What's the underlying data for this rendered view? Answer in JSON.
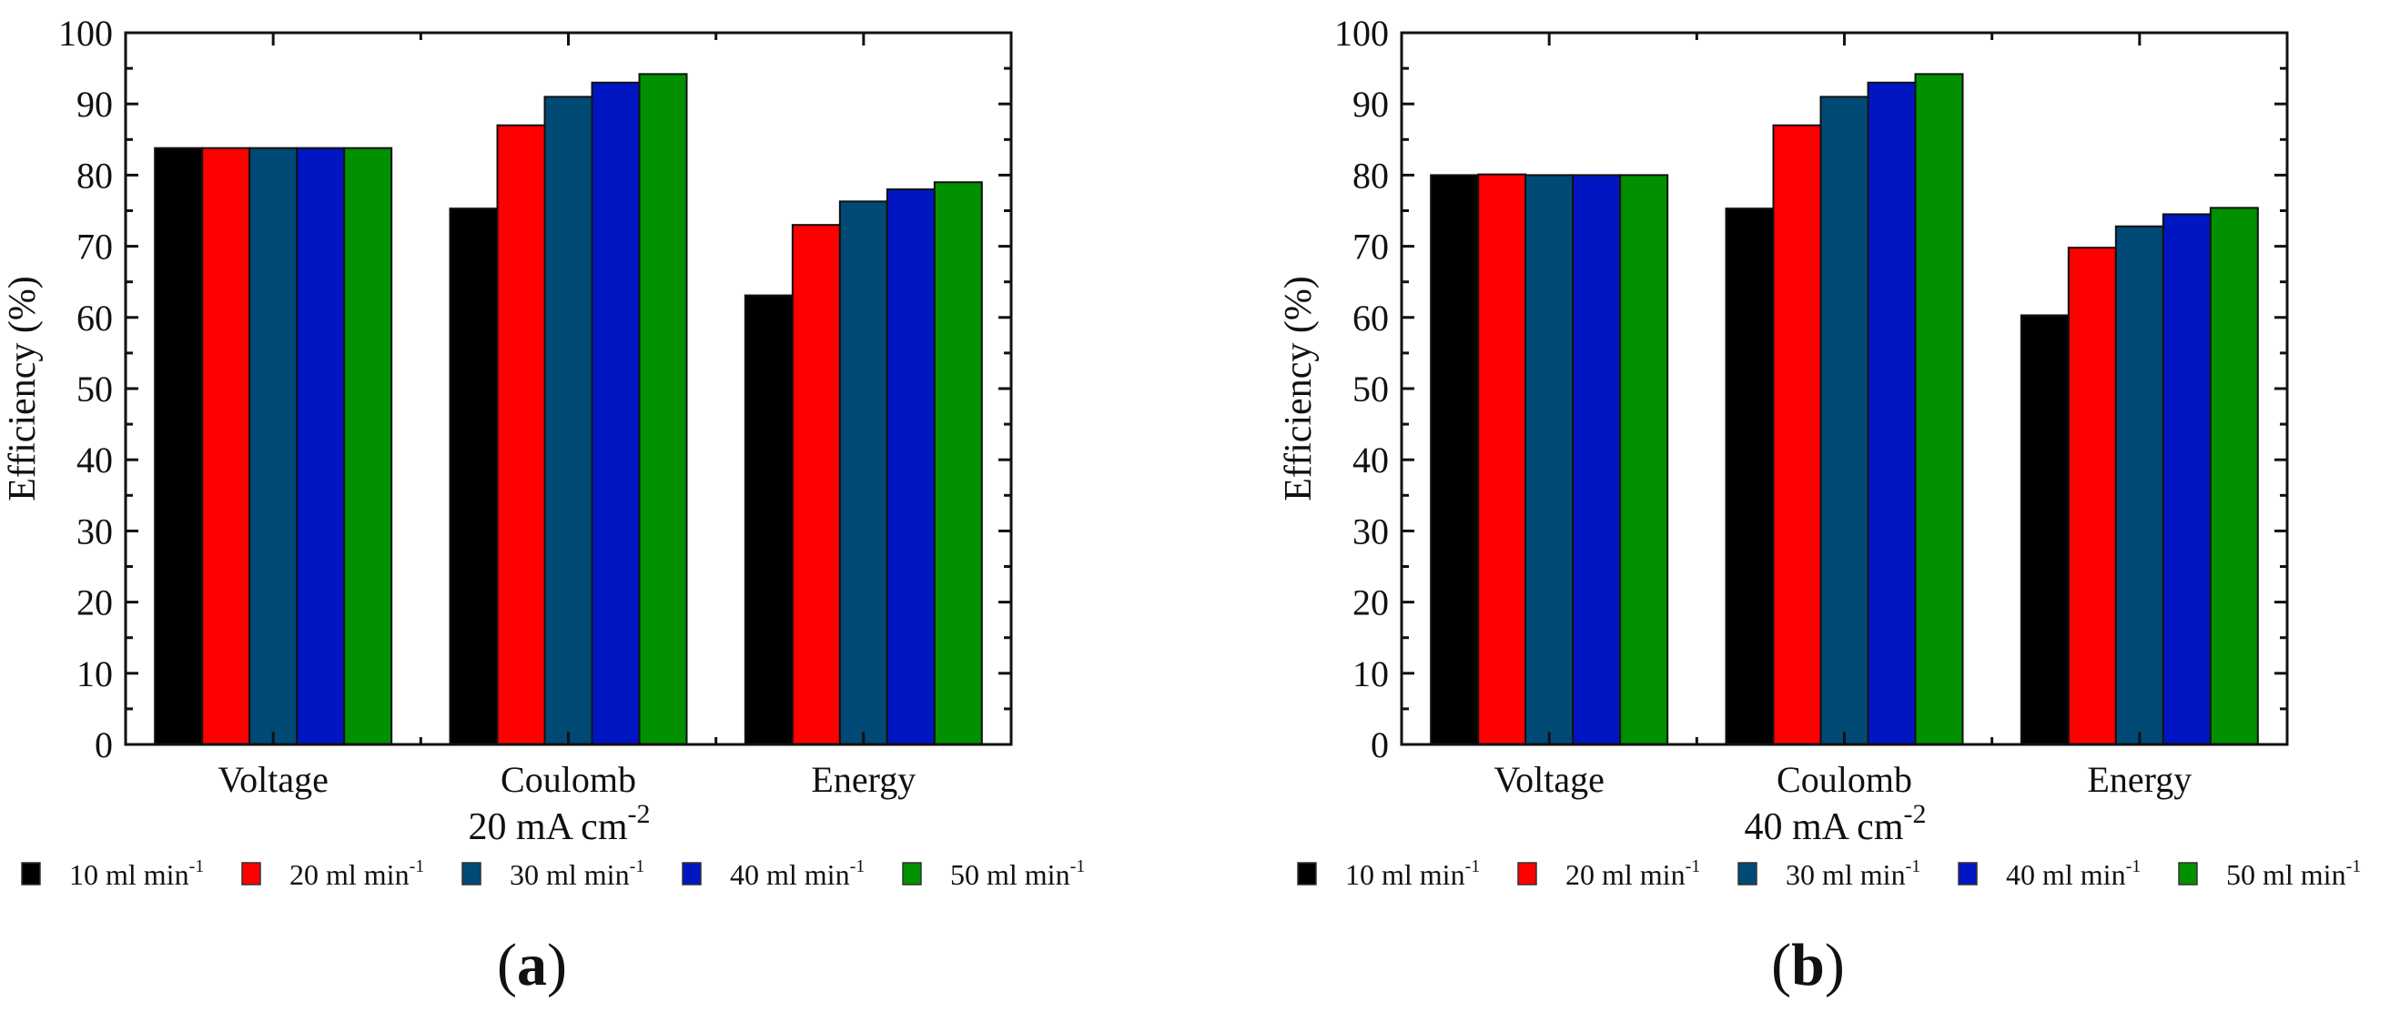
{
  "colors": {
    "10 ml min-1": "#000000",
    "20 ml min-1": "#ff0000",
    "30 ml min-1": "#004a75",
    "40 ml min-1": "#0016c2",
    "50 ml min-1": "#009000"
  },
  "chart_data": [
    {
      "type": "bar",
      "panel_label": "a",
      "title": "",
      "xlabel": "20 mA cm",
      "xlabel_sup": "-2",
      "ylabel": "Efficiency (%)",
      "ylim": [
        0,
        100
      ],
      "yticks": [
        0,
        10,
        20,
        30,
        40,
        50,
        60,
        70,
        80,
        90,
        100
      ],
      "categories": [
        "Voltage",
        "Coulomb",
        "Energy"
      ],
      "legend_position": "bottom",
      "series": [
        {
          "name": "10 ml min",
          "sup": "-1",
          "color": "#000000",
          "values": [
            83.8,
            75.3,
            63.1
          ]
        },
        {
          "name": "20 ml min",
          "sup": "-1",
          "color": "#ff0000",
          "values": [
            83.8,
            87.0,
            73.0
          ]
        },
        {
          "name": "30 ml min",
          "sup": "-1",
          "color": "#004a75",
          "values": [
            83.8,
            91.0,
            76.3
          ]
        },
        {
          "name": "40 ml min",
          "sup": "-1",
          "color": "#0016c2",
          "values": [
            83.8,
            93.0,
            78.0
          ]
        },
        {
          "name": "50 ml min",
          "sup": "-1",
          "color": "#009000",
          "values": [
            83.8,
            94.2,
            79.0
          ]
        }
      ]
    },
    {
      "type": "bar",
      "panel_label": "b",
      "title": "",
      "xlabel": "40 mA cm",
      "xlabel_sup": "-2",
      "ylabel": "Efficiency (%)",
      "ylim": [
        0,
        100
      ],
      "yticks": [
        0,
        10,
        20,
        30,
        40,
        50,
        60,
        70,
        80,
        90,
        100
      ],
      "categories": [
        "Voltage",
        "Coulomb",
        "Energy"
      ],
      "legend_position": "bottom",
      "series": [
        {
          "name": "10 ml min",
          "sup": "-1",
          "color": "#000000",
          "values": [
            80.0,
            75.3,
            60.3
          ]
        },
        {
          "name": "20 ml min",
          "sup": "-1",
          "color": "#ff0000",
          "values": [
            80.1,
            87.0,
            69.8
          ]
        },
        {
          "name": "30 ml min",
          "sup": "-1",
          "color": "#004a75",
          "values": [
            80.0,
            91.0,
            72.8
          ]
        },
        {
          "name": "40 ml min",
          "sup": "-1",
          "color": "#0016c2",
          "values": [
            80.0,
            93.0,
            74.5
          ]
        },
        {
          "name": "50 ml min",
          "sup": "-1",
          "color": "#009000",
          "values": [
            80.0,
            94.2,
            75.4
          ]
        }
      ]
    }
  ]
}
